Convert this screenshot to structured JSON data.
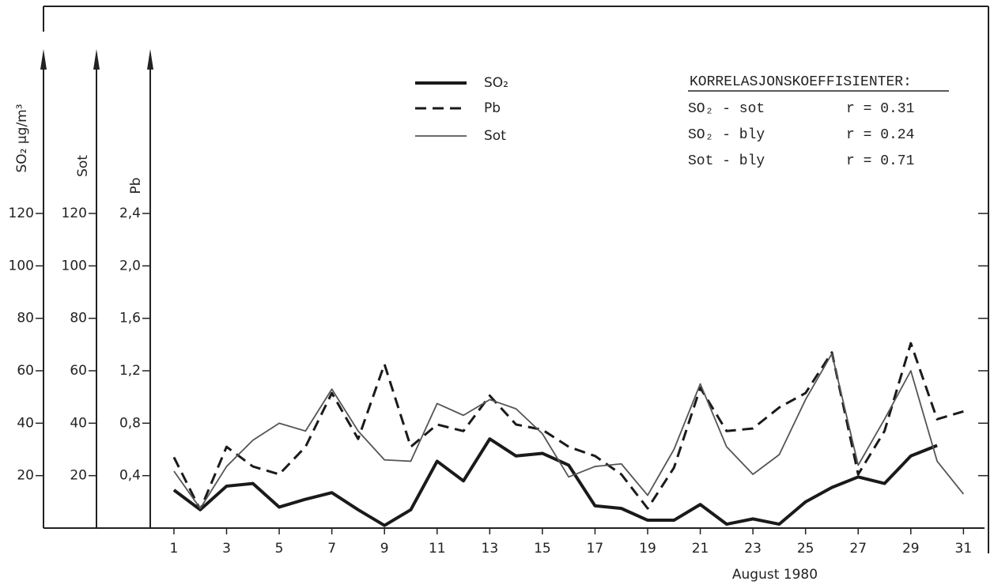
{
  "chart_data": {
    "type": "line",
    "x_label": "August 1980",
    "x": [
      1,
      2,
      3,
      4,
      5,
      6,
      7,
      8,
      9,
      10,
      11,
      12,
      13,
      14,
      15,
      16,
      17,
      18,
      19,
      20,
      21,
      22,
      23,
      24,
      25,
      26,
      27,
      28,
      29,
      30,
      31
    ],
    "xlim": [
      0.1,
      31.8
    ],
    "xticks": [
      1,
      3,
      5,
      7,
      9,
      11,
      13,
      15,
      17,
      19,
      21,
      23,
      25,
      27,
      29,
      31
    ],
    "y_label": "SO₂ µg/m³",
    "ylim": [
      0,
      180
    ],
    "yticks": [
      20,
      40,
      60,
      80,
      100,
      120
    ],
    "y2_label": "Sot",
    "y2lim": [
      0,
      180
    ],
    "y2ticks": [
      20,
      40,
      60,
      80,
      100,
      120
    ],
    "y3_label": "Pb",
    "y3lim": [
      0,
      3.6
    ],
    "y3ticks": [
      {
        "value": 0.4,
        "label": "0,4"
      },
      {
        "value": 0.8,
        "label": "0,8"
      },
      {
        "value": 1.2,
        "label": "1,2"
      },
      {
        "value": 1.6,
        "label": "1,6"
      },
      {
        "value": 2.0,
        "label": "2,0"
      },
      {
        "value": 2.4,
        "label": "2,4"
      }
    ],
    "series": [
      {
        "name": "SO₂",
        "axis": "y",
        "color": "#1a1a1a",
        "style": "solid-thick",
        "values": [
          14.5,
          7,
          16,
          17,
          8,
          11,
          13.5,
          7,
          1,
          7,
          25.5,
          18,
          34,
          27.5,
          28.5,
          24,
          8.5,
          7.5,
          3,
          3,
          9,
          1.5,
          3.5,
          1.5,
          10,
          15.5,
          19.5,
          17,
          27.5,
          31.5,
          null
        ]
      },
      {
        "name": "Pb",
        "axis": "y3",
        "color": "#1a1a1a",
        "style": "dashed",
        "values": [
          0.54,
          0.14,
          0.62,
          0.47,
          0.41,
          0.62,
          1.03,
          0.68,
          1.25,
          0.62,
          0.79,
          0.74,
          1.01,
          0.79,
          0.75,
          0.62,
          0.55,
          0.41,
          0.15,
          0.46,
          1.07,
          0.74,
          0.76,
          0.92,
          1.03,
          1.34,
          0.41,
          0.74,
          1.41,
          0.83,
          0.89
        ]
      },
      {
        "name": "Sot",
        "axis": "y2",
        "color": "#555555",
        "style": "solid-thin",
        "values": [
          21.7,
          7.5,
          23.5,
          33.5,
          40,
          37,
          53,
          37,
          26,
          25.5,
          47.5,
          43,
          49,
          45.5,
          36,
          19.5,
          23.5,
          24.5,
          12.5,
          30,
          55,
          31,
          20.5,
          28,
          49,
          66.5,
          24,
          41.5,
          60,
          25.5,
          13
        ]
      }
    ],
    "annotation": {
      "title": "KORRELASJONSKOEFFISIENTER:",
      "rows": [
        [
          "SO₂ - sot",
          "r = 0.31"
        ],
        [
          "SO₂ - bly",
          "r = 0.24"
        ],
        [
          "Sot - bly",
          "r = 0.71"
        ]
      ]
    }
  }
}
